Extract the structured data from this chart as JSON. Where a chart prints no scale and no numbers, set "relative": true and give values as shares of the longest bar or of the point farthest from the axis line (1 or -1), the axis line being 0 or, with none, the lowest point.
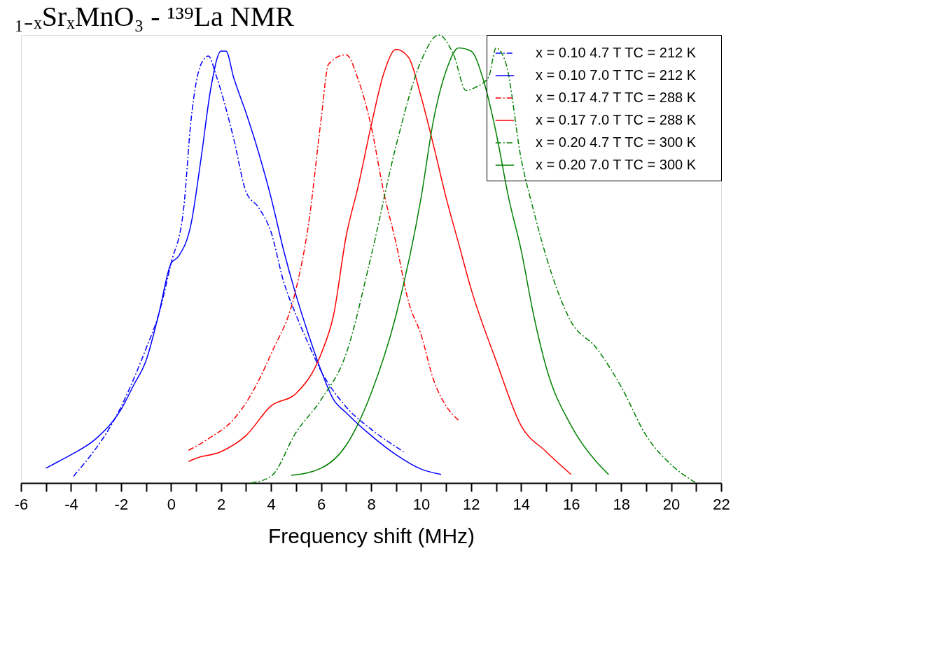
{
  "chart_data": {
    "type": "line",
    "title": "₁₋ₓSrₓMnO₃ - ¹³⁹La NMR",
    "xlabel": "Frequency shift (MHz)",
    "relative": true,
    "xlim": [
      -6,
      22
    ],
    "xticks": [
      -6,
      {
        "value": -5,
        "label": null
      },
      -4,
      {
        "value": -3,
        "label": null
      },
      -2,
      {
        "value": -1,
        "label": null
      },
      0,
      {
        "value": 1,
        "label": null
      },
      2,
      {
        "value": 3,
        "label": null
      },
      4,
      {
        "value": 5,
        "label": null
      },
      6,
      {
        "value": 7,
        "label": null
      },
      8,
      {
        "value": 9,
        "label": null
      },
      10,
      {
        "value": 11,
        "label": null
      },
      12,
      {
        "value": 13,
        "label": null
      },
      14,
      {
        "value": 15,
        "label": null
      },
      16,
      {
        "value": 17,
        "label": null
      },
      18,
      {
        "value": 19,
        "label": null
      },
      20,
      {
        "value": 21,
        "label": null
      },
      22
    ],
    "legend": "top right",
    "grid": false,
    "series": [
      {
        "name": "x = 0.10   4.7 T   TC = 212 K",
        "color": "#0000ff",
        "line_style": "dashed",
        "x": [
          -3.9,
          -2,
          -1,
          -0.5,
          0,
          0.5,
          0.8,
          1.2,
          1.5,
          1.8,
          2.5,
          3,
          3.5,
          4,
          4.5,
          5,
          5.5,
          6,
          7,
          8,
          9.3
        ],
        "values": [
          0.015,
          0.17,
          0.3,
          0.375,
          0.49,
          0.61,
          0.81,
          0.935,
          0.953,
          0.91,
          0.77,
          0.65,
          0.615,
          0.56,
          0.45,
          0.375,
          0.31,
          0.25,
          0.17,
          0.12,
          0.07
        ]
      },
      {
        "name": "x = 0.10   7.0 T   TC = 212 K",
        "color": "#0000ff",
        "line_style": "solid",
        "x": [
          -5,
          -4.5,
          -4,
          -3,
          -2,
          -1.5,
          -1,
          -0.5,
          0,
          0.3,
          0.8,
          1.2,
          1.6,
          2,
          2.2,
          2.5,
          3,
          3.5,
          4,
          4.5,
          5,
          5.5,
          6,
          6.5,
          7,
          8,
          9,
          10,
          10.8
        ],
        "values": [
          0.033,
          0.048,
          0.063,
          0.099,
          0.164,
          0.218,
          0.273,
          0.375,
          0.49,
          0.506,
          0.578,
          0.724,
          0.884,
          0.964,
          0.964,
          0.906,
          0.826,
          0.738,
          0.637,
          0.52,
          0.419,
          0.331,
          0.251,
          0.186,
          0.157,
          0.106,
          0.063,
          0.031,
          0.019
        ]
      },
      {
        "name": "x = 0.17   4.7 T   TC = 288 K",
        "color": "#ff0000",
        "line_style": "dashed",
        "x": [
          0.7,
          1.5,
          2.5,
          3,
          4,
          5,
          5.5,
          6,
          6.3,
          7,
          7.5,
          8,
          8.5,
          9,
          9.5,
          10,
          10.5,
          11,
          11.5
        ],
        "values": [
          0.073,
          0.099,
          0.142,
          0.179,
          0.288,
          0.433,
          0.578,
          0.811,
          0.935,
          0.956,
          0.898,
          0.797,
          0.651,
          0.535,
          0.404,
          0.331,
          0.23,
          0.172,
          0.14
        ]
      },
      {
        "name": "x = 0.17   7.0 T   TC = 288 K",
        "color": "#ff0000",
        "line_style": "solid",
        "x": [
          0.7,
          1,
          2,
          3,
          4,
          5,
          6,
          6.5,
          7,
          7.5,
          8,
          8.5,
          9,
          9.5,
          10,
          10.5,
          11,
          11.5,
          12,
          13,
          14,
          15,
          16
        ],
        "values": [
          0.048,
          0.055,
          0.07,
          0.106,
          0.172,
          0.2,
          0.288,
          0.375,
          0.55,
          0.666,
          0.797,
          0.913,
          0.968,
          0.95,
          0.862,
          0.753,
          0.637,
          0.535,
          0.433,
          0.273,
          0.128,
          0.07,
          0.019
        ]
      },
      {
        "name": "x = 0.20   4.7 T   TC = 300 K",
        "color": "#008000",
        "line_style": "dashed",
        "x": [
          3.2,
          4,
          5,
          6,
          7,
          8,
          9,
          10,
          10.7,
          11.3,
          11.8,
          12.2,
          12.7,
          13,
          13.4,
          14,
          14.5,
          15,
          16,
          17,
          18,
          19,
          20,
          21
        ],
        "values": [
          0,
          0.015,
          0.113,
          0.186,
          0.288,
          0.506,
          0.753,
          0.942,
          1,
          0.956,
          0.876,
          0.884,
          0.906,
          0.971,
          0.935,
          0.724,
          0.608,
          0.506,
          0.36,
          0.302,
          0.215,
          0.106,
          0.041,
          0
        ]
      },
      {
        "name": "x = 0.20   7.0 T   TC = 300 K",
        "color": "#008000",
        "line_style": "solid",
        "x": [
          4.8,
          6,
          7,
          8,
          9,
          10,
          10.5,
          11,
          11.5,
          12,
          12.5,
          13,
          13.5,
          14,
          14.5,
          15,
          16,
          17,
          17.5
        ],
        "values": [
          0.017,
          0.033,
          0.084,
          0.2,
          0.375,
          0.637,
          0.811,
          0.92,
          0.971,
          0.964,
          0.898,
          0.782,
          0.637,
          0.52,
          0.375,
          0.259,
          0.128,
          0.048,
          0.019
        ]
      }
    ]
  }
}
